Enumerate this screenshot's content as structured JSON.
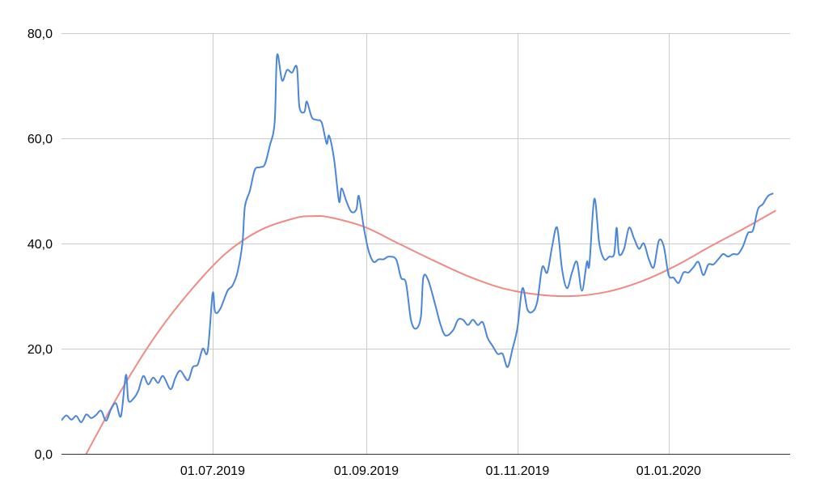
{
  "chart_data": {
    "type": "line",
    "title": "",
    "xlabel": "",
    "ylabel": "",
    "ylim": [
      0,
      80
    ],
    "xlim": [
      "2019-05-01",
      "2020-02-19"
    ],
    "grid": true,
    "y_ticks": [
      {
        "value": 0,
        "label": "0,0"
      },
      {
        "value": 20,
        "label": "20,0"
      },
      {
        "value": 40,
        "label": "40,0"
      },
      {
        "value": 60,
        "label": "60,0"
      },
      {
        "value": 80,
        "label": "80,0"
      }
    ],
    "x_ticks": [
      {
        "date": "2019-07-01",
        "label": "01.07.2019"
      },
      {
        "date": "2019-09-01",
        "label": "01.09.2019"
      },
      {
        "date": "2019-11-01",
        "label": "01.11.2019"
      },
      {
        "date": "2020-01-01",
        "label": "01.01.2020"
      }
    ],
    "series": [
      {
        "color": "#4a86d8",
        "points": [
          [
            "2019-05-01",
            6.4
          ],
          [
            "2019-05-03",
            7.3
          ],
          [
            "2019-05-05",
            6.5
          ],
          [
            "2019-05-07",
            7.2
          ],
          [
            "2019-05-09",
            6.0
          ],
          [
            "2019-05-11",
            7.5
          ],
          [
            "2019-05-13",
            6.8
          ],
          [
            "2019-05-15",
            7.4
          ],
          [
            "2019-05-17",
            8.2
          ],
          [
            "2019-05-19",
            6.3
          ],
          [
            "2019-05-21",
            8.5
          ],
          [
            "2019-05-23",
            9.6
          ],
          [
            "2019-05-25",
            7.2
          ],
          [
            "2019-05-27",
            15.0
          ],
          [
            "2019-05-28",
            10.2
          ],
          [
            "2019-05-30",
            10.5
          ],
          [
            "2019-06-01",
            12.0
          ],
          [
            "2019-06-03",
            14.8
          ],
          [
            "2019-06-05",
            13.2
          ],
          [
            "2019-06-07",
            14.5
          ],
          [
            "2019-06-09",
            13.5
          ],
          [
            "2019-06-11",
            14.8
          ],
          [
            "2019-06-14",
            12.3
          ],
          [
            "2019-06-16",
            14.5
          ],
          [
            "2019-06-18",
            15.8
          ],
          [
            "2019-06-21",
            14.0
          ],
          [
            "2019-06-23",
            16.5
          ],
          [
            "2019-06-25",
            17.0
          ],
          [
            "2019-06-27",
            20.0
          ],
          [
            "2019-06-29",
            19.5
          ],
          [
            "2019-07-01",
            30.5
          ],
          [
            "2019-07-02",
            27.0
          ],
          [
            "2019-07-04",
            27.5
          ],
          [
            "2019-07-07",
            31.0
          ],
          [
            "2019-07-09",
            32.0
          ],
          [
            "2019-07-11",
            34.5
          ],
          [
            "2019-07-13",
            40.0
          ],
          [
            "2019-07-14",
            47.0
          ],
          [
            "2019-07-16",
            50.0
          ],
          [
            "2019-07-18",
            54.0
          ],
          [
            "2019-07-20",
            54.5
          ],
          [
            "2019-07-22",
            55.0
          ],
          [
            "2019-07-24",
            58.5
          ],
          [
            "2019-07-26",
            63.0
          ],
          [
            "2019-07-27",
            75.8
          ],
          [
            "2019-07-29",
            71.0
          ],
          [
            "2019-07-31",
            73.0
          ],
          [
            "2019-08-02",
            72.5
          ],
          [
            "2019-08-04",
            73.5
          ],
          [
            "2019-08-05",
            66.0
          ],
          [
            "2019-08-07",
            65.0
          ],
          [
            "2019-08-08",
            67.0
          ],
          [
            "2019-08-10",
            64.0
          ],
          [
            "2019-08-12",
            63.5
          ],
          [
            "2019-08-14",
            63.0
          ],
          [
            "2019-08-16",
            59.0
          ],
          [
            "2019-08-17",
            60.5
          ],
          [
            "2019-08-19",
            56.0
          ],
          [
            "2019-08-21",
            48.0
          ],
          [
            "2019-08-22",
            50.5
          ],
          [
            "2019-08-24",
            48.0
          ],
          [
            "2019-08-26",
            46.0
          ],
          [
            "2019-08-28",
            46.5
          ],
          [
            "2019-08-29",
            49.0
          ],
          [
            "2019-08-31",
            43.0
          ],
          [
            "2019-09-02",
            38.5
          ],
          [
            "2019-09-04",
            36.5
          ],
          [
            "2019-09-06",
            37.0
          ],
          [
            "2019-09-08",
            37.0
          ],
          [
            "2019-09-10",
            37.5
          ],
          [
            "2019-09-13",
            37.0
          ],
          [
            "2019-09-15",
            33.5
          ],
          [
            "2019-09-17",
            32.5
          ],
          [
            "2019-09-19",
            25.5
          ],
          [
            "2019-09-21",
            23.8
          ],
          [
            "2019-09-23",
            26.0
          ],
          [
            "2019-09-24",
            33.5
          ],
          [
            "2019-09-26",
            33.0
          ],
          [
            "2019-09-29",
            28.0
          ],
          [
            "2019-10-01",
            24.5
          ],
          [
            "2019-10-03",
            22.5
          ],
          [
            "2019-10-06",
            23.5
          ],
          [
            "2019-10-08",
            25.5
          ],
          [
            "2019-10-10",
            25.5
          ],
          [
            "2019-10-12",
            24.5
          ],
          [
            "2019-10-14",
            25.5
          ],
          [
            "2019-10-16",
            24.5
          ],
          [
            "2019-10-18",
            25.0
          ],
          [
            "2019-10-20",
            22.0
          ],
          [
            "2019-10-22",
            20.5
          ],
          [
            "2019-10-24",
            19.0
          ],
          [
            "2019-10-26",
            19.0
          ],
          [
            "2019-10-28",
            16.5
          ],
          [
            "2019-10-30",
            20.0
          ],
          [
            "2019-11-01",
            24.0
          ],
          [
            "2019-11-03",
            31.5
          ],
          [
            "2019-11-05",
            27.5
          ],
          [
            "2019-11-07",
            27.0
          ],
          [
            "2019-11-09",
            29.0
          ],
          [
            "2019-11-11",
            35.5
          ],
          [
            "2019-11-13",
            34.5
          ],
          [
            "2019-11-15",
            39.5
          ],
          [
            "2019-11-17",
            43.0
          ],
          [
            "2019-11-19",
            35.0
          ],
          [
            "2019-11-21",
            31.5
          ],
          [
            "2019-11-23",
            34.5
          ],
          [
            "2019-11-25",
            36.5
          ],
          [
            "2019-11-27",
            31.0
          ],
          [
            "2019-11-29",
            36.5
          ],
          [
            "2019-11-30",
            36.0
          ],
          [
            "2019-12-02",
            48.5
          ],
          [
            "2019-12-04",
            40.0
          ],
          [
            "2019-12-06",
            37.0
          ],
          [
            "2019-12-08",
            37.5
          ],
          [
            "2019-12-10",
            38.0
          ],
          [
            "2019-12-11",
            43.0
          ],
          [
            "2019-12-12",
            38.0
          ],
          [
            "2019-12-14",
            39.0
          ],
          [
            "2019-12-16",
            43.0
          ],
          [
            "2019-12-18",
            41.0
          ],
          [
            "2019-12-20",
            39.0
          ],
          [
            "2019-12-22",
            40.0
          ],
          [
            "2019-12-24",
            37.0
          ],
          [
            "2019-12-26",
            35.5
          ],
          [
            "2019-12-28",
            40.5
          ],
          [
            "2019-12-30",
            39.5
          ],
          [
            "2020-01-01",
            34.0
          ],
          [
            "2020-01-03",
            33.5
          ],
          [
            "2020-01-05",
            32.5
          ],
          [
            "2020-01-07",
            34.5
          ],
          [
            "2020-01-09",
            34.5
          ],
          [
            "2020-01-11",
            35.5
          ],
          [
            "2020-01-13",
            36.5
          ],
          [
            "2020-01-15",
            34.0
          ],
          [
            "2020-01-17",
            36.0
          ],
          [
            "2020-01-19",
            36.0
          ],
          [
            "2020-01-21",
            37.0
          ],
          [
            "2020-01-23",
            38.0
          ],
          [
            "2020-01-25",
            37.5
          ],
          [
            "2020-01-27",
            38.0
          ],
          [
            "2020-01-29",
            38.0
          ],
          [
            "2020-01-31",
            39.5
          ],
          [
            "2020-02-02",
            42.0
          ],
          [
            "2020-02-04",
            42.5
          ],
          [
            "2020-02-06",
            46.5
          ],
          [
            "2020-02-08",
            47.5
          ],
          [
            "2020-02-10",
            49.0
          ],
          [
            "2020-02-12",
            49.5
          ]
        ]
      },
      {
        "color": "#f08a84",
        "smooth": true,
        "points": [
          [
            "2019-05-11",
            0.0
          ],
          [
            "2019-05-25",
            12.0
          ],
          [
            "2019-06-08",
            22.5
          ],
          [
            "2019-06-22",
            31.0
          ],
          [
            "2019-07-06",
            38.0
          ],
          [
            "2019-07-20",
            42.5
          ],
          [
            "2019-08-03",
            44.8
          ],
          [
            "2019-08-10",
            45.2
          ],
          [
            "2019-08-17",
            45.0
          ],
          [
            "2019-08-31",
            43.2
          ],
          [
            "2019-09-14",
            40.0
          ],
          [
            "2019-09-28",
            36.8
          ],
          [
            "2019-10-12",
            33.8
          ],
          [
            "2019-10-26",
            31.5
          ],
          [
            "2019-11-09",
            30.3
          ],
          [
            "2019-11-23",
            30.0
          ],
          [
            "2019-12-07",
            30.8
          ],
          [
            "2019-12-21",
            32.8
          ],
          [
            "2020-01-04",
            35.8
          ],
          [
            "2020-01-18",
            39.5
          ],
          [
            "2020-02-01",
            43.0
          ],
          [
            "2020-02-13",
            46.2
          ]
        ]
      }
    ]
  }
}
